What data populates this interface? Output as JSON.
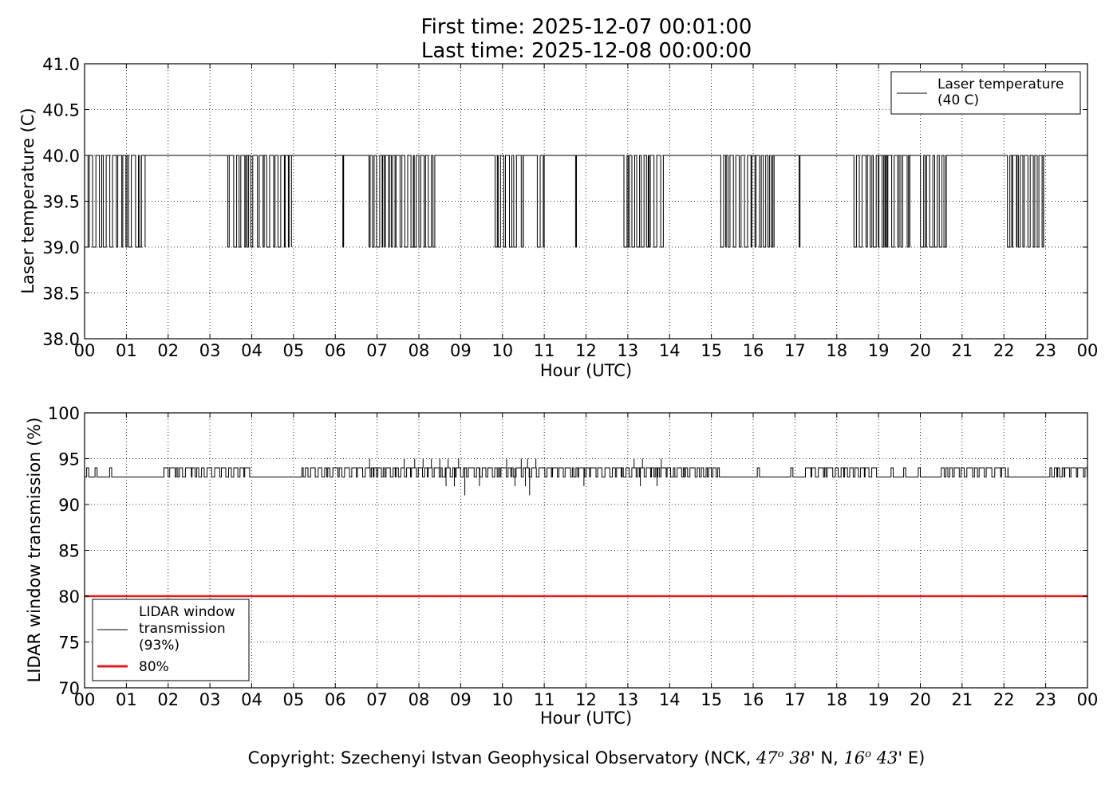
{
  "title": {
    "line1": "First time: 2025-12-07 00:01:00",
    "line2": "Last time: 2025-12-08 00:00:00"
  },
  "copyright": {
    "prefix": "Copyright: Szechenyi Istvan Geophysical Observatory (NCK, ",
    "lat_deg": "47",
    "lat_deg_sup": "o",
    "lat_min": "38",
    "lat_rest": "' N, ",
    "lon_deg": "16",
    "lon_deg_sup": "o",
    "lon_min": "43",
    "lon_rest": "' E)"
  },
  "colors": {
    "series": "#000000",
    "threshold": "#e41a1c",
    "grid": "#000000"
  },
  "chart_data": [
    {
      "type": "line",
      "xlabel": "Hour (UTC)",
      "ylabel": "Laser temperature (C)",
      "x_unit": "hour",
      "xlim": [
        0,
        24
      ],
      "ylim": [
        38.0,
        41.0
      ],
      "xticks": [
        "00",
        "01",
        "02",
        "03",
        "04",
        "05",
        "06",
        "07",
        "08",
        "09",
        "10",
        "11",
        "12",
        "13",
        "14",
        "15",
        "16",
        "17",
        "18",
        "19",
        "20",
        "21",
        "22",
        "23",
        "00"
      ],
      "yticks": [
        "38.0",
        "38.5",
        "39.0",
        "39.5",
        "40.0",
        "40.5",
        "41.0"
      ],
      "grid": true,
      "legend_position": "top-right",
      "series": [
        {
          "name": "Laser temperature\n(40 C)",
          "legend_lines": [
            "Laser temperature",
            "(40 C)"
          ],
          "base_value": 40.0,
          "low_value": 39.0,
          "toggle_intervals": [
            [
              0.0,
              1.45
            ],
            [
              3.38,
              4.95
            ],
            [
              6.18,
              6.2
            ],
            [
              6.72,
              8.38
            ],
            [
              9.72,
              10.5
            ],
            [
              10.75,
              11.0
            ],
            [
              11.75,
              11.77
            ],
            [
              12.88,
              13.85
            ],
            [
              15.15,
              16.5
            ],
            [
              17.1,
              17.12
            ],
            [
              18.3,
              19.75
            ],
            [
              19.95,
              20.62
            ],
            [
              22.0,
              22.95
            ]
          ]
        }
      ]
    },
    {
      "type": "line",
      "xlabel": "Hour (UTC)",
      "ylabel": "LIDAR window transmission (%)",
      "x_unit": "hour",
      "xlim": [
        0,
        24
      ],
      "ylim": [
        70,
        100
      ],
      "xticks": [
        "00",
        "01",
        "02",
        "03",
        "04",
        "05",
        "06",
        "07",
        "08",
        "09",
        "10",
        "11",
        "12",
        "13",
        "14",
        "15",
        "16",
        "17",
        "18",
        "19",
        "20",
        "21",
        "22",
        "23",
        "00"
      ],
      "yticks": [
        "70",
        "75",
        "80",
        "85",
        "90",
        "95",
        "100"
      ],
      "grid": true,
      "legend_position": "bottom-left",
      "series": [
        {
          "name": "LIDAR window\ntransmission\n(93%)",
          "legend_lines": [
            "LIDAR window",
            "transmission",
            "(93%)"
          ],
          "base_value": 93,
          "high_value": 94,
          "active_intervals": [
            [
              0.05,
              0.1
            ],
            [
              0.25,
              0.3
            ],
            [
              0.6,
              0.65
            ],
            [
              1.9,
              3.95
            ],
            [
              5.2,
              15.2
            ],
            [
              16.1,
              16.15
            ],
            [
              16.9,
              16.95
            ],
            [
              17.25,
              19.0
            ],
            [
              19.3,
              19.35
            ],
            [
              19.6,
              19.65
            ],
            [
              19.95,
              20.0
            ],
            [
              20.5,
              22.1
            ],
            [
              23.1,
              24.0
            ]
          ],
          "spikes_high": [
            [
              6.82,
              95
            ],
            [
              7.65,
              95
            ],
            [
              7.9,
              95
            ],
            [
              8.1,
              95
            ],
            [
              8.3,
              95
            ],
            [
              8.5,
              95
            ],
            [
              8.7,
              95
            ],
            [
              8.95,
              95
            ],
            [
              10.1,
              95
            ],
            [
              10.45,
              95
            ],
            [
              10.6,
              95
            ],
            [
              10.8,
              95
            ],
            [
              13.15,
              95
            ],
            [
              13.35,
              95
            ],
            [
              13.8,
              95
            ]
          ],
          "spikes_low": [
            [
              8.65,
              92
            ],
            [
              8.85,
              92
            ],
            [
              9.1,
              91
            ],
            [
              9.45,
              92
            ],
            [
              10.3,
              92
            ],
            [
              10.55,
              92
            ],
            [
              10.65,
              91
            ],
            [
              11.2,
              93
            ],
            [
              11.95,
              92
            ],
            [
              13.3,
              92
            ],
            [
              13.7,
              92
            ]
          ]
        },
        {
          "name": "80%",
          "legend_lines": [
            "80%"
          ],
          "values": [
            [
              0,
              80
            ],
            [
              24,
              80
            ]
          ]
        }
      ]
    }
  ]
}
